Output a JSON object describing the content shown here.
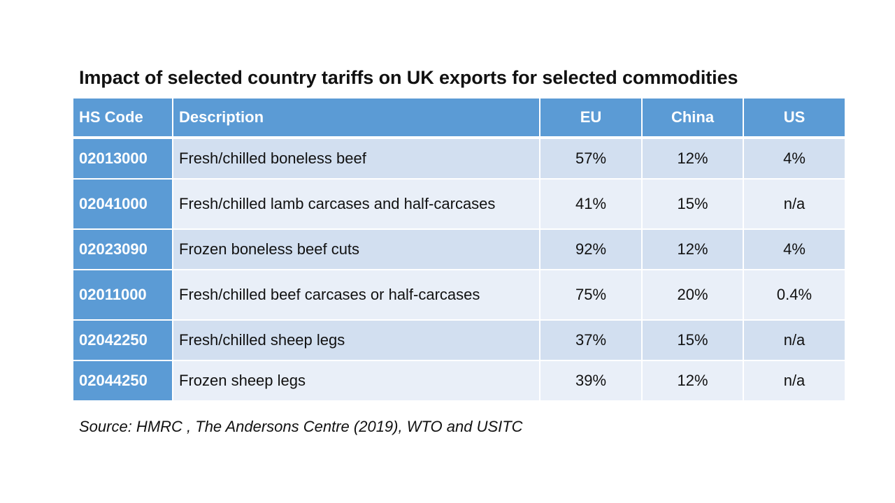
{
  "title": "Impact of selected country tariffs on UK exports for selected commodities",
  "table": {
    "headers": {
      "hs_code": "HS Code",
      "description": "Description",
      "eu": "EU",
      "china": "China",
      "us": "US"
    },
    "rows": [
      {
        "hs_code": "02013000",
        "description": "Fresh/chilled boneless beef",
        "eu": "57%",
        "china": "12%",
        "us": "4%"
      },
      {
        "hs_code": "02041000",
        "description": "Fresh/chilled lamb carcases and half-carcases",
        "eu": "41%",
        "china": "15%",
        "us": "n/a"
      },
      {
        "hs_code": "02023090",
        "description": "Frozen boneless beef cuts",
        "eu": "92%",
        "china": "12%",
        "us": "4%"
      },
      {
        "hs_code": "02011000",
        "description": "Fresh/chilled beef carcases or half-carcases",
        "eu": "75%",
        "china": "20%",
        "us": "0.4%"
      },
      {
        "hs_code": "02042250",
        "description": "Fresh/chilled sheep legs",
        "eu": "37%",
        "china": "15%",
        "us": "n/a"
      },
      {
        "hs_code": "02044250",
        "description": "Frozen sheep legs",
        "eu": "39%",
        "china": "12%",
        "us": "n/a"
      }
    ]
  },
  "source": "Source: HMRC , The Andersons Centre (2019), WTO and USITC",
  "colors": {
    "header_fill": "#5b9bd5",
    "band_dark": "#d2dff0",
    "band_light": "#e9eff8"
  }
}
